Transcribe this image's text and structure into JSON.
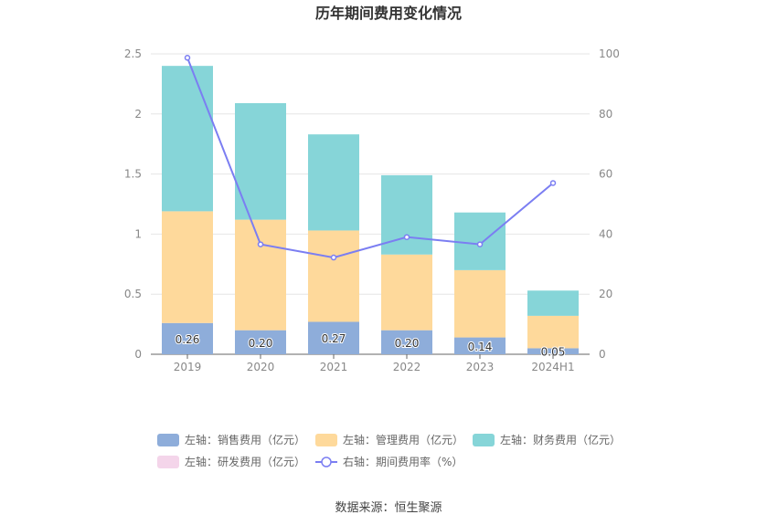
{
  "chart_data": {
    "type": "bar",
    "title": "历年期间费用变化情况",
    "categories": [
      "2019",
      "2020",
      "2021",
      "2022",
      "2023",
      "2024H1"
    ],
    "left_axis": {
      "min": 0,
      "max": 2.5,
      "ticks": [
        "0",
        "0.5",
        "1",
        "1.5",
        "2",
        "2.5"
      ]
    },
    "right_axis": {
      "min": 0,
      "max": 100,
      "ticks": [
        "0",
        "20",
        "40",
        "60",
        "80",
        "100"
      ]
    },
    "stacked": true,
    "grid": true,
    "legend_position": "bottom",
    "series": [
      {
        "name": "左轴：销售费用（亿元）",
        "color": "#8eadda",
        "axis": "left",
        "values": [
          0.26,
          0.2,
          0.27,
          0.2,
          0.14,
          0.05
        ],
        "labels": [
          "0.26",
          "0.20",
          "0.27",
          "0.20",
          "0.14",
          "0.05"
        ]
      },
      {
        "name": "左轴：管理费用（亿元）",
        "color": "#fed99b",
        "axis": "left",
        "values": [
          0.93,
          0.92,
          0.76,
          0.63,
          0.56,
          0.27
        ]
      },
      {
        "name": "左轴：财务费用（亿元）",
        "color": "#86d5d8",
        "axis": "left",
        "values": [
          1.21,
          0.97,
          0.8,
          0.66,
          0.48,
          0.21
        ]
      },
      {
        "name": "左轴：研发费用（亿元）",
        "color": "#f4d5ea",
        "axis": "left",
        "values": [
          0,
          0,
          0,
          0,
          0,
          0
        ]
      },
      {
        "name": "右轴：期间费用率（%）",
        "color": "#7b7ef2",
        "axis": "right",
        "type": "line",
        "values": [
          98.7,
          36.6,
          32.2,
          39.0,
          36.6,
          57.0
        ]
      }
    ],
    "source": "数据来源：恒生聚源"
  }
}
